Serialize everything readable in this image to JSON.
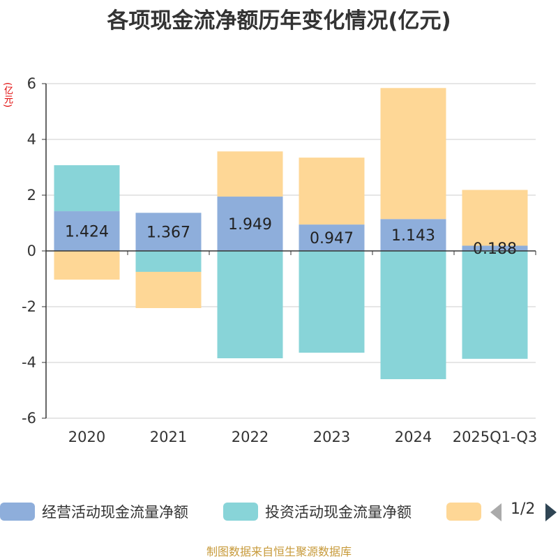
{
  "unit_label": "(亿元)",
  "legend": {
    "items": [
      {
        "label": "经营活动现金流量净额",
        "color": "#8eaedb"
      },
      {
        "label": "投资活动现金流量净额",
        "color": "#88d4d8"
      },
      {
        "label": "",
        "color": "#fed796"
      }
    ],
    "page": "1/2"
  },
  "source": "制图数据来自恒生聚源数据库",
  "chart_data": {
    "type": "bar",
    "stacked": true,
    "title": "各项现金流净额历年变化情况(亿元)",
    "categories": [
      "2020",
      "2021",
      "2022",
      "2023",
      "2024",
      "2025Q1-Q3"
    ],
    "series": [
      {
        "name": "经营活动现金流量净额",
        "color": "#8eaedb",
        "values": [
          1.424,
          1.367,
          1.949,
          0.947,
          1.143,
          0.188
        ],
        "labels": [
          "1.424",
          "1.367",
          "1.949",
          "0.947",
          "1.143",
          "0.188"
        ]
      },
      {
        "name": "投资活动现金流量净额",
        "color": "#88d4d8",
        "values": [
          1.65,
          -0.75,
          -3.85,
          -3.65,
          -4.6,
          -3.87
        ]
      },
      {
        "name": "",
        "color": "#fed796",
        "values": [
          -1.03,
          -1.3,
          1.62,
          2.4,
          4.7,
          2.0
        ]
      }
    ],
    "ylim": [
      -6,
      6
    ],
    "yticks": [
      -6,
      -4,
      -2,
      0,
      2,
      4,
      6
    ],
    "grid": true,
    "legend_position": "bottom"
  }
}
